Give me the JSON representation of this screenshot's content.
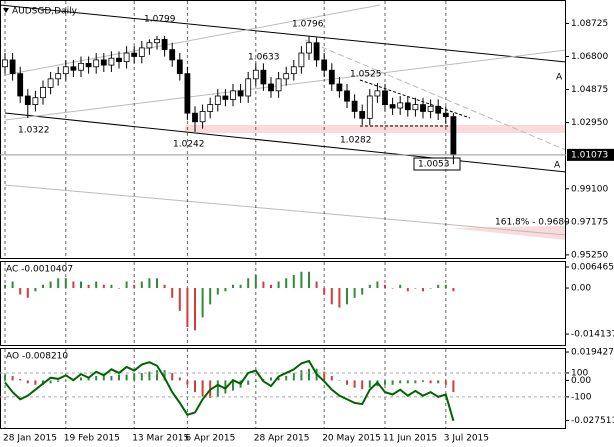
{
  "chart_data": [
    {
      "type": "candlestick",
      "title": "AUDSGD,Daily",
      "categories": [
        "28 Jan 2015",
        null,
        null,
        null,
        null,
        null,
        null,
        null,
        "19 Feb 2015",
        null,
        null,
        null,
        null,
        null,
        null,
        null,
        null,
        "13 Mar 2015",
        null,
        null,
        null,
        null,
        null,
        null,
        "6 Apr 2015",
        null,
        null,
        null,
        null,
        null,
        null,
        null,
        null,
        "28 Apr 2015",
        null,
        null,
        null,
        null,
        null,
        null,
        null,
        null,
        "20 May 2015",
        null,
        null,
        null,
        null,
        null,
        null,
        null,
        "11 Jun 2015",
        null,
        null,
        null,
        null,
        null,
        null,
        null,
        "3 Jul 2015",
        null
      ],
      "open": [
        1.062,
        1.066,
        1.058,
        1.045,
        1.04,
        1.044,
        1.05,
        1.055,
        1.058,
        1.062,
        1.06,
        1.064,
        1.062,
        1.066,
        1.063,
        1.067,
        1.065,
        1.07,
        1.068,
        1.073,
        1.076,
        1.078,
        1.072,
        1.066,
        1.058,
        1.035,
        1.03,
        1.036,
        1.04,
        1.045,
        1.043,
        1.048,
        1.045,
        1.055,
        1.06,
        1.052,
        1.048,
        1.055,
        1.058,
        1.062,
        1.07,
        1.076,
        1.066,
        1.06,
        1.052,
        1.048,
        1.042,
        1.036,
        1.032,
        1.045,
        1.048,
        1.04,
        1.038,
        1.041,
        1.037,
        1.04,
        1.036,
        1.039,
        1.035,
        1.033
      ],
      "high": [
        1.07,
        1.07,
        1.062,
        1.049,
        1.048,
        1.054,
        1.059,
        1.062,
        1.066,
        1.066,
        1.068,
        1.068,
        1.07,
        1.07,
        1.071,
        1.071,
        1.074,
        1.074,
        1.077,
        1.078,
        1.0799,
        1.08,
        1.076,
        1.07,
        1.062,
        1.039,
        1.04,
        1.044,
        1.049,
        1.049,
        1.052,
        1.052,
        1.059,
        1.064,
        1.064,
        1.056,
        1.059,
        1.062,
        1.066,
        1.074,
        1.0796,
        1.079,
        1.07,
        1.064,
        1.056,
        1.052,
        1.046,
        1.04,
        1.049,
        1.0525,
        1.052,
        1.044,
        1.045,
        1.045,
        1.044,
        1.044,
        1.043,
        1.043,
        1.039,
        1.035
      ],
      "low": [
        1.058,
        1.054,
        1.041,
        1.0322,
        1.036,
        1.04,
        1.046,
        1.051,
        1.054,
        1.056,
        1.056,
        1.058,
        1.058,
        1.059,
        1.059,
        1.061,
        1.061,
        1.064,
        1.064,
        1.069,
        1.072,
        1.068,
        1.062,
        1.054,
        1.031,
        1.0242,
        1.026,
        1.032,
        1.036,
        1.039,
        1.039,
        1.041,
        1.041,
        1.051,
        1.048,
        1.044,
        1.044,
        1.051,
        1.054,
        1.058,
        1.066,
        1.062,
        1.056,
        1.048,
        1.044,
        1.038,
        1.032,
        1.0282,
        1.028,
        1.041,
        1.036,
        1.034,
        1.034,
        1.033,
        1.033,
        1.032,
        1.032,
        1.031,
        1.029,
        1.0053
      ],
      "close": [
        1.066,
        1.058,
        1.045,
        1.04,
        1.044,
        1.05,
        1.055,
        1.058,
        1.062,
        1.06,
        1.064,
        1.062,
        1.066,
        1.063,
        1.067,
        1.065,
        1.07,
        1.068,
        1.073,
        1.076,
        1.078,
        1.072,
        1.066,
        1.058,
        1.035,
        1.03,
        1.036,
        1.04,
        1.045,
        1.043,
        1.048,
        1.045,
        1.055,
        1.06,
        1.052,
        1.048,
        1.055,
        1.058,
        1.062,
        1.07,
        1.076,
        1.066,
        1.06,
        1.052,
        1.048,
        1.042,
        1.036,
        1.032,
        1.045,
        1.048,
        1.04,
        1.038,
        1.041,
        1.037,
        1.04,
        1.036,
        1.039,
        1.035,
        1.033,
        1.01073
      ],
      "ylim": [
        0.9507,
        1.1003
      ],
      "yticks": [
        1.08725,
        {
          "value": 1.068,
          "label": "1.06800"
        },
        1.04875,
        {
          "value": 1.0295,
          "label": "1.02950"
        },
        {
          "value": 0.991,
          "label": "0.99100"
        },
        0.97175,
        {
          "value": 0.9525,
          "label": "0.95250"
        }
      ],
      "current_price": 1.01073,
      "annotations": [
        "1.0799",
        "1.0796",
        "1.0633",
        "1.0525",
        "1.0322",
        "1.0242",
        "1.0282",
        "1.0053",
        "161.8% - 0.9680",
        "A",
        "A"
      ],
      "up_color": "#ffffff",
      "down_color": "#000000"
    },
    {
      "type": "bar",
      "title": "AC -0.0010407",
      "values": [
        0.001,
        0.002,
        -0.002,
        -0.003,
        -0.001,
        0.001,
        0.002,
        0.003,
        0.003,
        0.002,
        0.002,
        0.001,
        0.002,
        0.001,
        0.001,
        0.0,
        0.002,
        0.001,
        0.002,
        0.003,
        0.003,
        0.001,
        -0.003,
        -0.007,
        -0.012,
        -0.013,
        -0.009,
        -0.005,
        -0.002,
        -0.001,
        0.001,
        0.001,
        0.003,
        0.004,
        0.002,
        0.001,
        0.002,
        0.003,
        0.004,
        0.005,
        0.005,
        0.002,
        -0.002,
        -0.005,
        -0.006,
        -0.005,
        -0.003,
        -0.002,
        0.001,
        0.002,
        0.001,
        0.0,
        0.001,
        -0.001,
        0.0,
        -0.001,
        0.0,
        0.001,
        0.001,
        -0.001
      ],
      "ylim": [
        -0.0175,
        0.008
      ],
      "yticks": [
        0.006465,
        {
          "value": 0,
          "label": "0.00"
        },
        -0.014137
      ],
      "up_color": "#2e8b3a",
      "down_color": "#d23c3c"
    },
    {
      "type": "bar",
      "title": "AO -0.008210",
      "values": [
        0.004,
        0.003,
        0.001,
        -0.002,
        -0.003,
        -0.003,
        -0.002,
        -0.001,
        0.0,
        0.001,
        0.002,
        0.002,
        0.003,
        0.003,
        0.003,
        0.004,
        0.004,
        0.005,
        0.005,
        0.006,
        0.007,
        0.007,
        0.005,
        0.002,
        -0.003,
        -0.008,
        -0.011,
        -0.012,
        -0.011,
        -0.009,
        -0.007,
        -0.005,
        -0.003,
        -0.001,
        0.001,
        0.002,
        0.002,
        0.003,
        0.005,
        0.007,
        0.008,
        0.008,
        0.006,
        0.003,
        0.0,
        -0.003,
        -0.005,
        -0.006,
        -0.005,
        -0.004,
        -0.003,
        -0.003,
        -0.002,
        -0.002,
        -0.002,
        -0.001,
        -0.002,
        -0.002,
        -0.003,
        -0.008
      ],
      "ylim": [
        -0.0326,
        0.0215
      ],
      "yticks": [
        0.019427,
        {
          "value": 0,
          "label": "0.00"
        },
        -0.027511
      ],
      "y2lim": [
        -360,
        300
      ],
      "y2ticks": [
        100,
        -100
      ],
      "series": [
        {
          "color": "#006400",
          "axis": "y2",
          "values": [
            20,
            -60,
            -120,
            -90,
            -40,
            10,
            60,
            50,
            80,
            40,
            90,
            60,
            110,
            80,
            130,
            100,
            150,
            120,
            170,
            190,
            160,
            60,
            -60,
            -150,
            -250,
            -230,
            -120,
            -40,
            0,
            -30,
            40,
            10,
            100,
            120,
            30,
            -10,
            70,
            100,
            130,
            180,
            200,
            90,
            30,
            -40,
            -90,
            -120,
            -150,
            -160,
            -40,
            20,
            -60,
            -80,
            -40,
            -90,
            -50,
            -90,
            -60,
            -100,
            -80,
            -300
          ]
        }
      ],
      "up_color": "#2e8b3a",
      "down_color": "#d23c3c"
    }
  ]
}
